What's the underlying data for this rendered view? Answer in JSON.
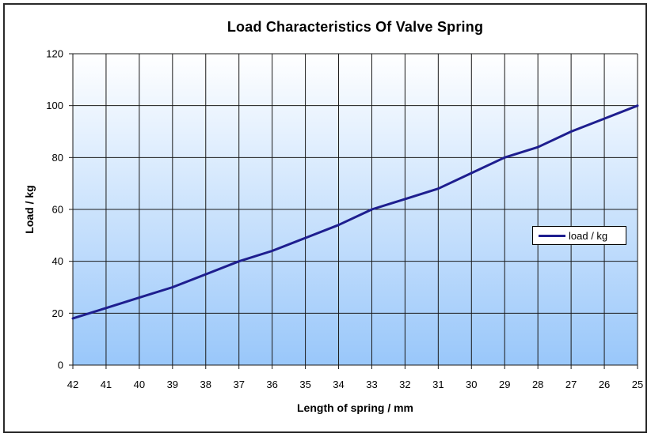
{
  "chart_data": {
    "type": "line",
    "title": "Load Characteristics Of Valve Spring",
    "xlabel": "Length of spring / mm",
    "ylabel": "Load / kg",
    "x": [
      42,
      41,
      40,
      39,
      38,
      37,
      36,
      35,
      34,
      33,
      32,
      31,
      30,
      29,
      28,
      27,
      26,
      25
    ],
    "x_axis_reversed": true,
    "ylim": [
      0,
      120
    ],
    "y_ticks": [
      0,
      20,
      40,
      60,
      80,
      100,
      120
    ],
    "grid": true,
    "series": [
      {
        "name": "load / kg",
        "color": "#1E1E8F",
        "values": [
          18,
          22,
          26,
          30,
          35,
          40,
          44,
          49,
          54,
          60,
          64,
          68,
          74,
          80,
          84,
          90,
          95,
          100
        ]
      }
    ],
    "legend": {
      "position": "middle-right",
      "entries": [
        "load / kg"
      ]
    },
    "plot_background": {
      "type": "gradient",
      "from": "#FFFFFF",
      "to": "#99C7FA"
    },
    "gridline_color": "#1A1A1A",
    "frame_border_color": "#2A2A2A",
    "text_color": "#000000"
  }
}
